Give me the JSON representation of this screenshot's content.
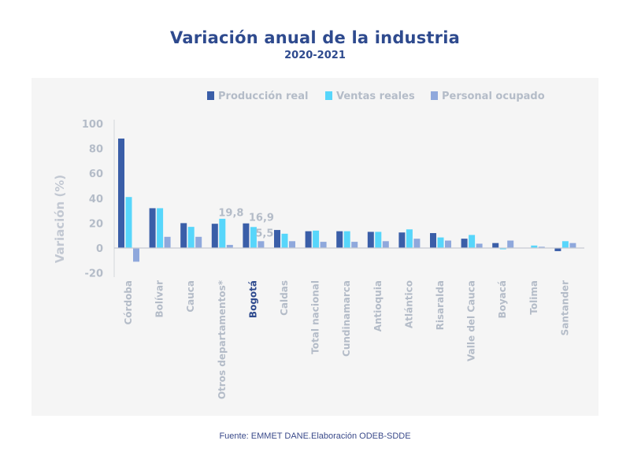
{
  "header": {
    "title": "Variación anual de la industria",
    "subtitle": "2020-2021"
  },
  "footer": {
    "source": "Fuente: EMMET DANE.Elaboración ODEB-SDDE"
  },
  "chart_data": {
    "type": "bar",
    "title": "Variación anual de la industria",
    "subtitle": "2020-2021",
    "xlabel": "",
    "ylabel": "Variación (%)",
    "ylim": [
      -20,
      100
    ],
    "yticks": [
      -20,
      0,
      20,
      40,
      60,
      80,
      100
    ],
    "grid": false,
    "legend_position": "top-right",
    "highlight_category": "Bogotá",
    "categories": [
      "Córdoba",
      "Bolívar",
      "Cauca",
      "Otros departamentos*",
      "Bogotá",
      "Caldas",
      "Total nacional",
      "Cundinamarca",
      "Antioquia",
      "Atlántico",
      "Risaralda",
      "Valle del Cauca",
      "Boyacá",
      "Tolima",
      "Santander"
    ],
    "series": [
      {
        "name": "Producción real",
        "color": "#3a5ea8",
        "values": [
          88,
          32,
          20,
          19.5,
          19.8,
          14.5,
          13.5,
          13.5,
          13,
          12.5,
          12,
          7.5,
          4,
          0.2,
          -2.5
        ]
      },
      {
        "name": "Ventas reales",
        "color": "#57d6fb",
        "values": [
          41,
          32,
          17,
          23.5,
          16.9,
          11.5,
          14,
          13.5,
          13,
          15,
          8.5,
          10.5,
          -1,
          2,
          5.5
        ]
      },
      {
        "name": "Personal ocupado",
        "color": "#8fa8dc",
        "values": [
          -11,
          9,
          9,
          2.5,
          5.5,
          5.5,
          5,
          5,
          5.5,
          7.5,
          6,
          3.5,
          6,
          1,
          4
        ]
      }
    ],
    "annotations": [
      {
        "category": "Bogotá",
        "series": "Producción real",
        "text": "19,8"
      },
      {
        "category": "Bogotá",
        "series": "Ventas reales",
        "text": "16,9"
      },
      {
        "category": "Bogotá",
        "series": "Personal ocupado",
        "text": "5,5"
      }
    ]
  }
}
